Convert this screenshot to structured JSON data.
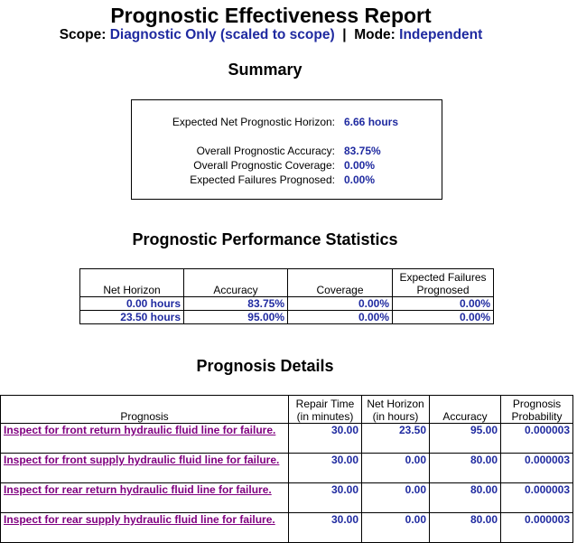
{
  "header": {
    "title": "Prognostic Effectiveness Report",
    "scope_label": "Scope:",
    "scope_value": "Diagnostic Only (scaled to scope)",
    "separator": "|",
    "mode_label": "Mode:",
    "mode_value": "Independent"
  },
  "summary": {
    "heading": "Summary",
    "horizon_label": "Expected Net Prognostic Horizon:",
    "horizon_value": "6.66 hours",
    "accuracy_label": "Overall Prognostic Accuracy:",
    "accuracy_value": "83.75%",
    "coverage_label": "Overall Prognostic Coverage:",
    "coverage_value": "0.00%",
    "failures_label": "Expected Failures Prognosed:",
    "failures_value": "0.00%"
  },
  "stats": {
    "heading": "Prognostic Performance Statistics",
    "headers": [
      "Net Horizon",
      "Accuracy",
      "Coverage",
      "Expected Failures Prognosed"
    ],
    "rows": [
      [
        "0.00 hours",
        "83.75%",
        "0.00%",
        "0.00%"
      ],
      [
        "23.50 hours",
        "95.00%",
        "0.00%",
        "0.00%"
      ]
    ]
  },
  "details": {
    "heading": "Prognosis Details",
    "headers": [
      "Prognosis",
      "Repair Time (in minutes)",
      "Net Horizon (in hours)",
      "Accuracy",
      "Prognosis Probability"
    ],
    "rows": [
      [
        "Inspect for front return hydraulic fluid line for failure.",
        "30.00",
        "23.50",
        "95.00",
        "0.000003"
      ],
      [
        "Inspect for front supply hydraulic fluid line for failure.",
        "30.00",
        "0.00",
        "80.00",
        "0.000003"
      ],
      [
        "Inspect for rear return hydraulic fluid line for failure.",
        "30.00",
        "0.00",
        "80.00",
        "0.000003"
      ],
      [
        "Inspect for rear supply hydraulic fluid line for failure.",
        "30.00",
        "0.00",
        "80.00",
        "0.000003"
      ]
    ]
  }
}
